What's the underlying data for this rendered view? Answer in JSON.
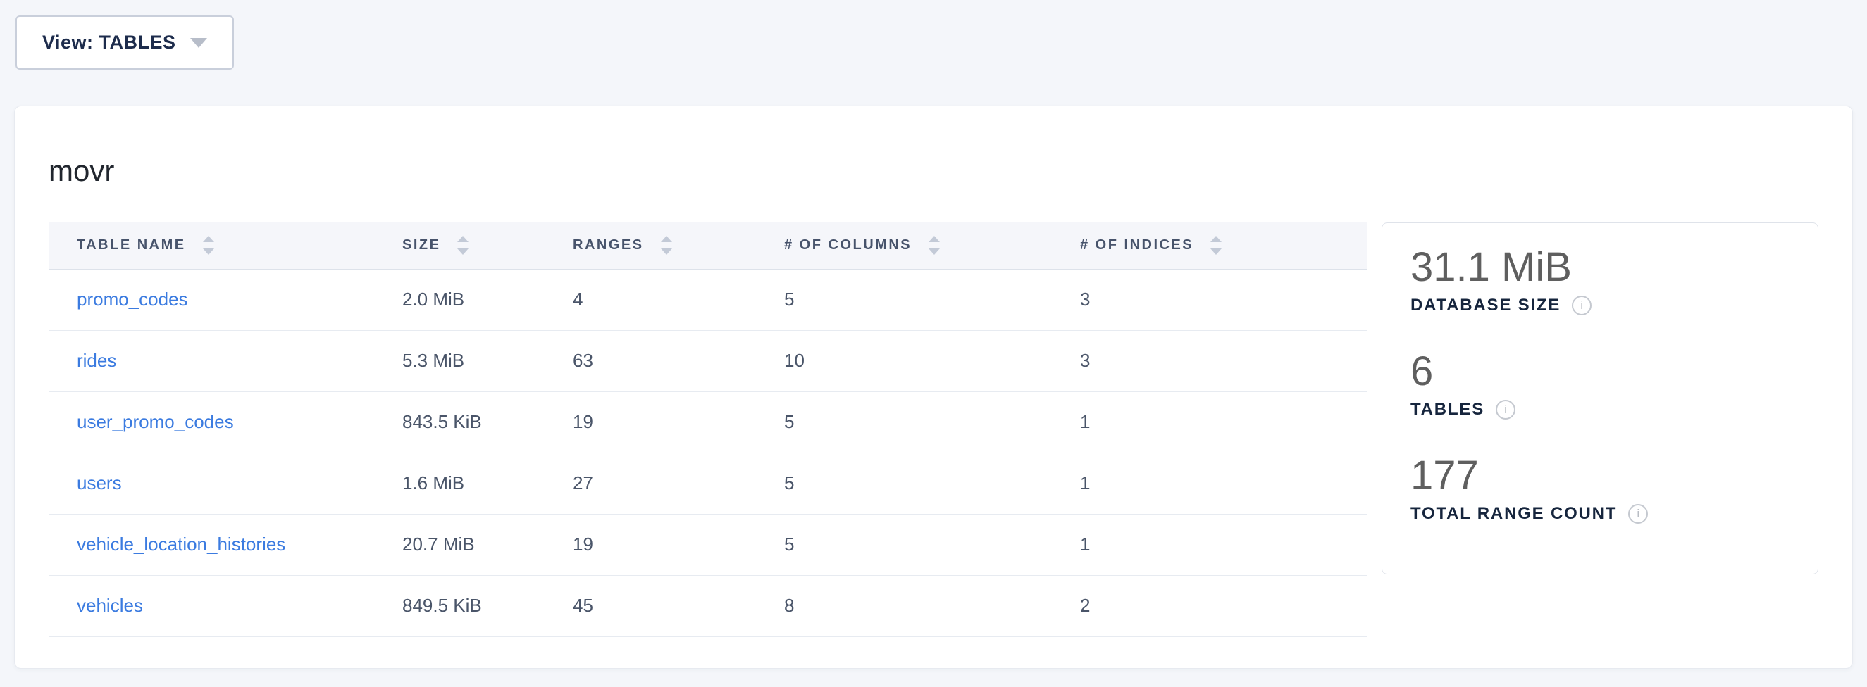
{
  "toolbar": {
    "view_button_label": "View: TABLES"
  },
  "database": {
    "name": "movr"
  },
  "table": {
    "columns": [
      {
        "key": "table_name",
        "label": "TABLE NAME",
        "sortable": true
      },
      {
        "key": "size",
        "label": "SIZE",
        "sortable": true
      },
      {
        "key": "ranges",
        "label": "RANGES",
        "sortable": true
      },
      {
        "key": "columns",
        "label": "# OF COLUMNS",
        "sortable": true
      },
      {
        "key": "indices",
        "label": "# OF INDICES",
        "sortable": true
      }
    ],
    "rows": [
      {
        "table_name": "promo_codes",
        "size": "2.0 MiB",
        "ranges": "4",
        "columns": "5",
        "indices": "3"
      },
      {
        "table_name": "rides",
        "size": "5.3 MiB",
        "ranges": "63",
        "columns": "10",
        "indices": "3"
      },
      {
        "table_name": "user_promo_codes",
        "size": "843.5 KiB",
        "ranges": "19",
        "columns": "5",
        "indices": "1"
      },
      {
        "table_name": "users",
        "size": "1.6 MiB",
        "ranges": "27",
        "columns": "5",
        "indices": "1"
      },
      {
        "table_name": "vehicle_location_histories",
        "size": "20.7 MiB",
        "ranges": "19",
        "columns": "5",
        "indices": "1"
      },
      {
        "table_name": "vehicles",
        "size": "849.5 KiB",
        "ranges": "45",
        "columns": "8",
        "indices": "2"
      }
    ]
  },
  "summary": {
    "stats": [
      {
        "value": "31.1 MiB",
        "label": "DATABASE SIZE",
        "info_icon": "i"
      },
      {
        "value": "6",
        "label": "TABLES",
        "info_icon": "i"
      },
      {
        "value": "177",
        "label": "TOTAL RANGE COUNT",
        "info_icon": "i"
      }
    ]
  },
  "colors": {
    "page_background": "#f4f6fa",
    "card_background": "#ffffff",
    "link_blue": "#3b7be0",
    "header_text": "#47536b",
    "cell_text": "#4a5569",
    "stat_value_gray": "#5f5f5f",
    "stat_label_navy": "#16253d",
    "sort_arrow_gray": "#c3cad7",
    "table_header_background": "#f5f6fa",
    "row_divider": "#e7ebf1"
  }
}
